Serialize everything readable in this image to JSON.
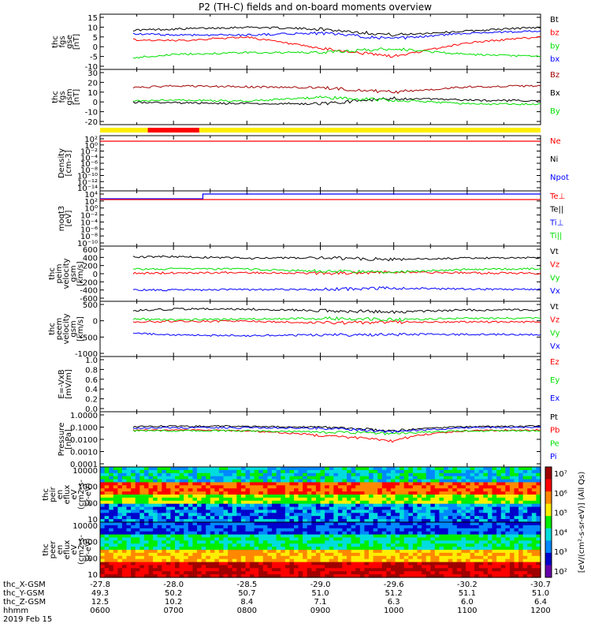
{
  "title": "P2 (TH-C) fields and on-board moments overview",
  "colors": {
    "black": "#000000",
    "red": "#ff0000",
    "darkred": "#a00000",
    "green": "#00e000",
    "blue": "#0000ff",
    "yellow": "#ffee00"
  },
  "panels": [
    {
      "id": "fgs-gse",
      "ylabel": [
        "thc",
        "fgs",
        "gse",
        "[nT]"
      ],
      "ticks": [
        "15",
        "10",
        "5",
        "0",
        "-5",
        "-10"
      ],
      "legend": [
        "Bt",
        "bz",
        "by",
        "bx"
      ],
      "legend_colors": [
        "black",
        "red",
        "green",
        "blue"
      ]
    },
    {
      "id": "fgs-gsm",
      "ylabel": [
        "thc",
        "fgs",
        "gsm",
        "[nT]"
      ],
      "ticks": [
        "30",
        "20",
        "10",
        "0",
        "-10",
        "-20"
      ],
      "legend": [
        "Bz",
        "Bx",
        "By"
      ],
      "legend_colors": [
        "darkred",
        "black",
        "green"
      ]
    },
    {
      "id": "density",
      "ylabel": [
        "Density",
        "[cm-3]"
      ],
      "ticks": [
        "10²",
        "10⁰",
        "10⁻²",
        "10⁻⁴",
        "10⁻⁶",
        "10⁻⁸",
        "10⁻¹⁰",
        "10⁻¹²",
        "10⁻¹⁴"
      ],
      "legend": [
        "Ne",
        "Ni",
        "Npot"
      ],
      "legend_colors": [
        "red",
        "black",
        "blue"
      ]
    },
    {
      "id": "temperature",
      "ylabel": [
        "moqt3",
        "[eV]"
      ],
      "ticks": [
        "10⁴",
        "10²",
        "10⁰",
        "10⁻²",
        "10⁻⁴",
        "10⁻⁶",
        "10⁻⁸",
        "10⁻¹⁰"
      ],
      "legend": [
        "Te⊥",
        "Te||",
        "Ti⊥",
        "Ti||"
      ],
      "legend_colors": [
        "red",
        "black",
        "blue",
        "green"
      ]
    },
    {
      "id": "peim",
      "ylabel": [
        "thc",
        "peim",
        "velocity",
        "gsm",
        "[km/s]"
      ],
      "ticks": [
        "600",
        "400",
        "200",
        "0",
        "-200",
        "-400",
        "-600"
      ],
      "legend": [
        "Vt",
        "Vz",
        "Vy",
        "Vx"
      ],
      "legend_colors": [
        "black",
        "red",
        "green",
        "blue"
      ]
    },
    {
      "id": "peem",
      "ylabel": [
        "thc",
        "peem",
        "velocity",
        "gsm",
        "[km/s]"
      ],
      "ticks": [
        "500",
        "0",
        "-500",
        "-1000"
      ],
      "legend": [
        "Vt",
        "Vz",
        "Vy",
        "Vx"
      ],
      "legend_colors": [
        "black",
        "red",
        "green",
        "blue"
      ]
    },
    {
      "id": "efield",
      "ylabel": [
        "E=-VxB",
        "[mV/m]"
      ],
      "ticks": [
        "1.0",
        "0.8",
        "0.6",
        "0.4",
        "0.2",
        "0.0"
      ],
      "legend": [
        "Ez",
        "Ey",
        "Ex"
      ],
      "legend_colors": [
        "red",
        "green",
        "blue"
      ]
    },
    {
      "id": "pressure",
      "ylabel": [
        "Pressure",
        "[nPa]"
      ],
      "ticks": [
        "1.0000",
        "0.1000",
        "0.0100",
        "0.0010",
        "0.0001"
      ],
      "legend": [
        "Pt",
        "Pb",
        "Pe",
        "Pi"
      ],
      "legend_colors": [
        "black",
        "red",
        "green",
        "blue"
      ]
    },
    {
      "id": "peir",
      "ylabel": [
        "thc",
        "peir",
        "en",
        "eflux",
        "eV",
        "(cm2-s-",
        "sr-eV)"
      ],
      "ticks": [
        "10000",
        "1000",
        "100",
        "10"
      ]
    },
    {
      "id": "peer",
      "ylabel": [
        "thc",
        "peer",
        "en",
        "eflux",
        "eV",
        "(cm2-s-",
        "sr-eV)"
      ],
      "ticks": [
        "10000",
        "1000",
        "100",
        "10"
      ]
    }
  ],
  "colorbar": {
    "ticks": [
      "10⁷",
      "10⁶",
      "10⁵",
      "10⁴",
      "10³",
      "10²"
    ],
    "label": "[eV/(cm²-s-sr-eV)] (All Qs)"
  },
  "footer": {
    "rows": [
      {
        "label": "thc_X-GSM",
        "values": [
          "-27.8",
          "-28.0",
          "-28.5",
          "-29.0",
          "-29.6",
          "-30.2",
          "-30.7"
        ]
      },
      {
        "label": "thc_Y-GSM",
        "values": [
          "49.3",
          "50.2",
          "50.7",
          "51.0",
          "51.2",
          "51.1",
          "51.0"
        ]
      },
      {
        "label": "thc_Z-GSM",
        "values": [
          "12.5",
          "10.2",
          "8.4",
          "7.1",
          "6.3",
          "6.0",
          "6.4"
        ]
      },
      {
        "label": "hhmm",
        "values": [
          "0600",
          "0700",
          "0800",
          "0900",
          "1000",
          "1100",
          "1200"
        ]
      }
    ],
    "date": "2019 Feb 15"
  },
  "chart_data": {
    "type": "line",
    "title": "P2 (TH-C) fields and on-board moments overview",
    "x_time_hhmm": [
      "0600",
      "0700",
      "0800",
      "0900",
      "1000",
      "1100",
      "1200"
    ],
    "x": [
      6,
      7,
      8,
      9,
      10,
      11,
      12
    ],
    "fgs_gse_nT": {
      "ylim": [
        -10,
        15
      ],
      "series": [
        {
          "name": "Bt",
          "color": "black",
          "values": [
            8,
            9,
            10,
            9,
            6,
            8,
            10
          ]
        },
        {
          "name": "bz",
          "color": "red",
          "values": [
            4,
            3,
            5,
            -1,
            -5,
            2,
            5
          ]
        },
        {
          "name": "by",
          "color": "green",
          "values": [
            -7,
            -4,
            -3,
            -3,
            -1,
            -4,
            -5
          ]
        },
        {
          "name": "bx",
          "color": "blue",
          "values": [
            7,
            6,
            6,
            7,
            4,
            7,
            8
          ]
        }
      ]
    },
    "fgs_gsm_nT": {
      "ylim": [
        -25,
        30
      ],
      "series": [
        {
          "name": "Bz",
          "color": "darkred",
          "values": [
            11,
            15,
            14,
            13,
            8,
            14,
            15
          ]
        },
        {
          "name": "Bx",
          "color": "black",
          "values": [
            -3,
            -4,
            -5,
            -5,
            1,
            -1,
            -2
          ]
        },
        {
          "name": "By",
          "color": "green",
          "values": [
            -3,
            -1,
            -2,
            2,
            -1,
            -5,
            -6
          ]
        }
      ]
    },
    "density_cm3": {
      "ylim": [
        "1e-14",
        "1e2"
      ],
      "series": [
        {
          "name": "Ne",
          "color": "red",
          "values": [
            2,
            2,
            2,
            2,
            2,
            2,
            2
          ]
        }
      ]
    },
    "temperature_eV": {
      "ylim": [
        "1e-10",
        "1e4"
      ],
      "series": [
        {
          "name": "Ti⊥",
          "color": "blue",
          "values": [
            400,
            400,
            1500,
            1500,
            1500,
            1500,
            1500
          ]
        },
        {
          "name": "Te⊥",
          "color": "red",
          "values": [
            100,
            100,
            100,
            100,
            100,
            100,
            100
          ]
        }
      ]
    },
    "peim_velocity_kms": {
      "ylim": [
        -600,
        600
      ],
      "series": [
        {
          "name": "Vt",
          "color": "black",
          "values": [
            400,
            420,
            380,
            390,
            350,
            380,
            390
          ]
        },
        {
          "name": "Vz",
          "color": "red",
          "values": [
            0,
            20,
            30,
            10,
            40,
            20,
            10
          ]
        },
        {
          "name": "Vy",
          "color": "green",
          "values": [
            100,
            120,
            110,
            60,
            40,
            110,
            120
          ]
        },
        {
          "name": "Vx",
          "color": "blue",
          "values": [
            -400,
            -400,
            -390,
            -390,
            -350,
            -380,
            -390
          ]
        }
      ]
    },
    "peem_velocity_kms": {
      "ylim": [
        -1000,
        600
      ],
      "series": [
        {
          "name": "Vt",
          "color": "black",
          "values": [
            350,
            450,
            450,
            400,
            350,
            420,
            420
          ]
        },
        {
          "name": "Vz",
          "color": "red",
          "values": [
            0,
            50,
            50,
            0,
            20,
            30,
            30
          ]
        },
        {
          "name": "Vy",
          "color": "green",
          "values": [
            150,
            100,
            120,
            150,
            100,
            150,
            150
          ]
        },
        {
          "name": "Vx",
          "color": "blue",
          "values": [
            -300,
            -400,
            -420,
            -400,
            -380,
            -380,
            -380
          ]
        }
      ]
    },
    "pressure_nPa": {
      "ylim": [
        0.0001,
        1.0
      ],
      "series": [
        {
          "name": "Pt",
          "color": "black",
          "values": [
            0.1,
            0.12,
            0.12,
            0.1,
            0.05,
            0.11,
            0.12
          ]
        },
        {
          "name": "Pb",
          "color": "red",
          "values": [
            0.05,
            0.06,
            0.05,
            0.02,
            0.007,
            0.05,
            0.06
          ]
        },
        {
          "name": "Pe",
          "color": "green",
          "values": [
            0.05,
            0.05,
            0.05,
            0.04,
            0.03,
            0.05,
            0.05
          ]
        },
        {
          "name": "Pi",
          "color": "blue",
          "values": [
            0.08,
            0.09,
            0.09,
            0.08,
            0.04,
            0.09,
            0.1
          ]
        }
      ]
    }
  }
}
